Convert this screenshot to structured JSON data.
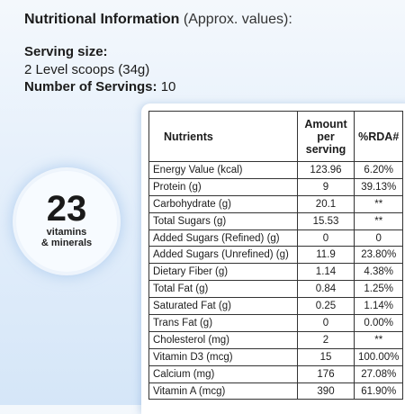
{
  "header": {
    "title_bold": "Nutritional Information",
    "title_light": "(Approx. values):",
    "serving_label": "Serving size:",
    "serving_value": "2 Level scoops (34g)",
    "servings_label": "Number of Servings:",
    "servings_value": "10"
  },
  "badge": {
    "number": "23",
    "line1": "vitamins",
    "line2": "& minerals"
  },
  "table": {
    "headers": {
      "nutrients": "Nutrients",
      "amount_l1": "Amount",
      "amount_l2": "per",
      "amount_l3": "serving",
      "rda": "%RDA#"
    },
    "rows": [
      {
        "name": "Energy Value (kcal)",
        "amount": "123.96",
        "rda": "6.20%"
      },
      {
        "name": "Protein (g)",
        "amount": "9",
        "rda": "39.13%"
      },
      {
        "name": "Carbohydrate (g)",
        "amount": "20.1",
        "rda": "**"
      },
      {
        "name": "Total Sugars (g)",
        "amount": "15.53",
        "rda": "**"
      },
      {
        "name": "Added Sugars (Refined) (g)",
        "amount": "0",
        "rda": "0"
      },
      {
        "name": "Added Sugars (Unrefined) (g)",
        "amount": "11.9",
        "rda": "23.80%"
      },
      {
        "name": "Dietary Fiber (g)",
        "amount": "1.14",
        "rda": "4.38%"
      },
      {
        "name": "Total Fat (g)",
        "amount": "0.84",
        "rda": "1.25%"
      },
      {
        "name": "Saturated Fat (g)",
        "amount": "0.25",
        "rda": "1.14%"
      },
      {
        "name": "Trans Fat (g)",
        "amount": "0",
        "rda": "0.00%"
      },
      {
        "name": "Cholesterol (mg)",
        "amount": "2",
        "rda": "**"
      },
      {
        "name": "Vitamin D3 (mcg)",
        "amount": "15",
        "rda": "100.00%"
      },
      {
        "name": "Calcium (mg)",
        "amount": "176",
        "rda": "27.08%"
      },
      {
        "name": "Vitamin A (mcg)",
        "amount": "390",
        "rda": "61.90%"
      }
    ]
  }
}
